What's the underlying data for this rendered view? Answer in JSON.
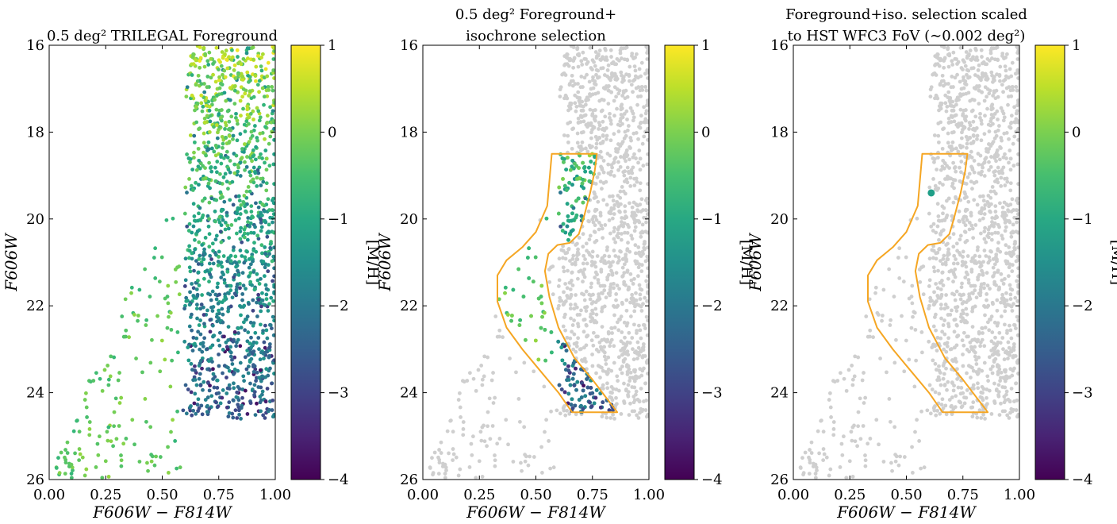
{
  "figure": {
    "panels": [
      {
        "title_lines": [
          "0.5 deg² TRILEGAL Foreground"
        ],
        "mode": "all_colored",
        "scale_marker": false
      },
      {
        "title_lines": [
          "0.5 deg² Foreground+",
          "isochrone selection"
        ],
        "mode": "selection_colored",
        "scale_marker": false
      },
      {
        "title_lines": [
          "Foreground+iso. selection scaled",
          "to HST WFC3 FoV (∼0.002 deg²)"
        ],
        "mode": "single_star",
        "scale_marker": true
      }
    ],
    "colors": {
      "background_star": "#cfcfcf",
      "selection_polygon": "#f5a623",
      "axes": "#000000"
    }
  },
  "chart_data": {
    "type": "scatter",
    "shared_axes": {
      "xlabel": "F606W − F814W",
      "ylabel": "F606W",
      "xlim": [
        0.0,
        1.0
      ],
      "ylim": [
        26,
        16
      ],
      "xticks": [
        "0.00",
        "0.25",
        "0.50",
        "0.75",
        "1.00"
      ],
      "yticks": [
        "16",
        "18",
        "20",
        "22",
        "24",
        "26"
      ],
      "y_inverted": true
    },
    "colorbar": {
      "label": "[M/H]",
      "range": [
        -4,
        1
      ],
      "ticks": [
        "1",
        "0",
        "−1",
        "−2",
        "−3",
        "−4"
      ],
      "colormap": "viridis"
    },
    "selection_polygon": [
      [
        0.57,
        18.5
      ],
      [
        0.77,
        18.5
      ],
      [
        0.76,
        18.9
      ],
      [
        0.74,
        19.4
      ],
      [
        0.71,
        20.0
      ],
      [
        0.69,
        20.35
      ],
      [
        0.65,
        20.55
      ],
      [
        0.595,
        20.6
      ],
      [
        0.555,
        20.8
      ],
      [
        0.54,
        21.2
      ],
      [
        0.56,
        21.8
      ],
      [
        0.6,
        22.5
      ],
      [
        0.67,
        23.2
      ],
      [
        0.75,
        23.7
      ],
      [
        0.86,
        24.45
      ],
      [
        0.66,
        24.45
      ],
      [
        0.6,
        24.0
      ],
      [
        0.52,
        23.5
      ],
      [
        0.44,
        23.0
      ],
      [
        0.37,
        22.5
      ],
      [
        0.33,
        21.9
      ],
      [
        0.33,
        21.3
      ],
      [
        0.37,
        20.95
      ],
      [
        0.44,
        20.65
      ],
      [
        0.5,
        20.3
      ],
      [
        0.55,
        19.7
      ],
      [
        0.57,
        18.5
      ]
    ],
    "wfc3_scaled_star": {
      "x": 0.61,
      "y": 19.4,
      "mh": -1.2
    },
    "star_population": {
      "n_faint_scatter": 150,
      "n_main_band": 1300,
      "color_range_main": [
        0.58,
        1.0
      ],
      "mag_range": [
        16,
        26
      ]
    }
  }
}
